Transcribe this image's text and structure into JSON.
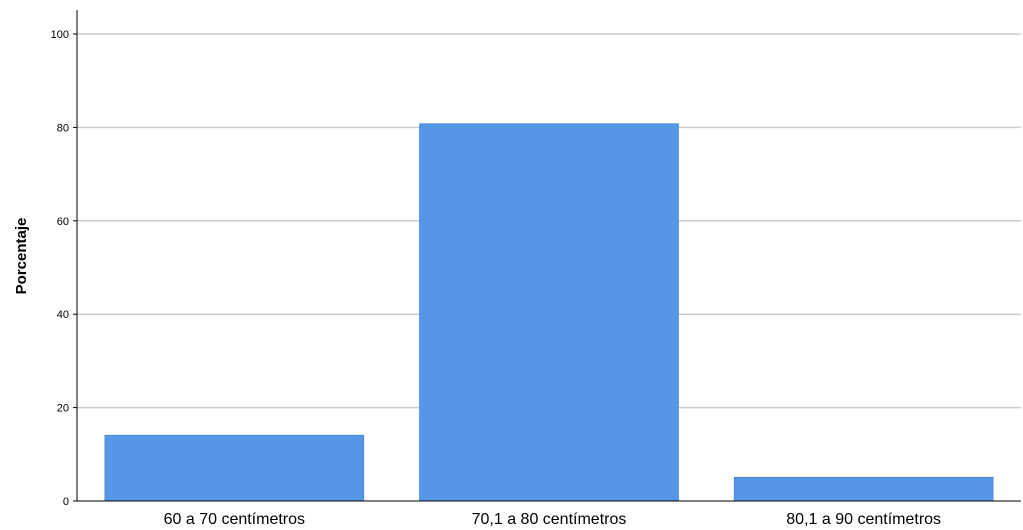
{
  "chart_data": {
    "type": "bar",
    "title": "",
    "xlabel": "",
    "ylabel": "Porcentaje",
    "categories": [
      "60 a 70 centímetros",
      "70,1 a 80 centímetros",
      "80,1 a 90 centímetros"
    ],
    "values": [
      14.1,
      80.8,
      5.1
    ],
    "ylim": [
      0,
      100
    ],
    "yticks": [
      "0",
      "20",
      "40",
      "60",
      "80",
      "100"
    ],
    "grid": "horizontal",
    "legend": "none"
  },
  "colors": {
    "bar": "#5596e6",
    "grid": "#cccccc",
    "axis": "#000000"
  }
}
